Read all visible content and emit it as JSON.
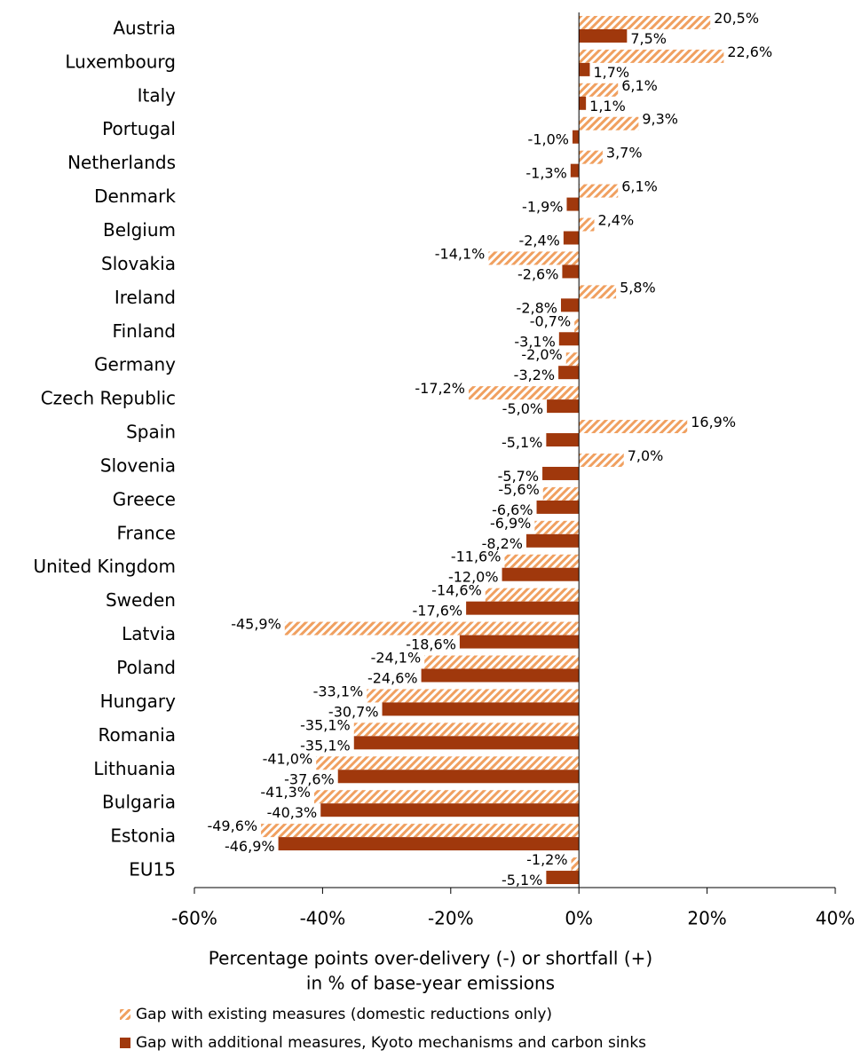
{
  "chart_data": {
    "type": "bar",
    "orientation": "horizontal",
    "categories": [
      "Austria",
      "Luxembourg",
      "Italy",
      "Portugal",
      "Netherlands",
      "Denmark",
      "Belgium",
      "Slovakia",
      "Ireland",
      "Finland",
      "Germany",
      "Czech Republic",
      "Spain",
      "Slovenia",
      "Greece",
      "France",
      "United Kingdom",
      "Sweden",
      "Latvia",
      "Poland",
      "Hungary",
      "Romania",
      "Lithuania",
      "Bulgaria",
      "Estonia",
      "EU15"
    ],
    "series": [
      {
        "name": "Gap with existing measures (domestic reductions only)",
        "color": "#f0a060",
        "pattern": "hatch",
        "values": [
          20.5,
          22.6,
          6.1,
          9.3,
          3.7,
          6.1,
          2.4,
          -14.1,
          5.8,
          -0.7,
          -2.0,
          -17.2,
          16.9,
          7.0,
          -5.6,
          -6.9,
          -11.6,
          -14.6,
          -45.9,
          -24.1,
          -33.1,
          -35.1,
          -41.0,
          -41.3,
          -49.6,
          -1.2
        ],
        "value_labels": [
          "20,5%",
          "22,6%",
          "6,1%",
          "9,3%",
          "3,7%",
          "6,1%",
          "2,4%",
          "-14,1%",
          "5,8%",
          "-0,7%",
          "-2,0%",
          "-17,2%",
          "16,9%",
          "7,0%",
          "-5,6%",
          "-6,9%",
          "-11,6%",
          "-14,6%",
          "-45,9%",
          "-24,1%",
          "-33,1%",
          "-35,1%",
          "-41,0%",
          "-41,3%",
          "-49,6%",
          "-1,2%"
        ]
      },
      {
        "name": "Gap with additional measures, Kyoto mechanisms and carbon sinks",
        "color": "#a0380c",
        "pattern": "solid",
        "values": [
          7.5,
          1.7,
          1.1,
          -1.0,
          -1.3,
          -1.9,
          -2.4,
          -2.6,
          -2.8,
          -3.1,
          -3.2,
          -5.0,
          -5.1,
          -5.7,
          -6.6,
          -8.2,
          -12.0,
          -17.6,
          -18.6,
          -24.6,
          -30.7,
          -35.1,
          -37.6,
          -40.3,
          -46.9,
          -5.1
        ],
        "value_labels": [
          "7,5%",
          "1,7%",
          "1,1%",
          "-1,0%",
          "-1,3%",
          "-1,9%",
          "-2,4%",
          "-2,6%",
          "-2,8%",
          "-3,1%",
          "-3,2%",
          "-5,0%",
          "-5,1%",
          "-5,7%",
          "-6,6%",
          "-8,2%",
          "-12,0%",
          "-17,6%",
          "-18,6%",
          "-24,6%",
          "-30,7%",
          "-35,1%",
          "-37,6%",
          "-40,3%",
          "-46,9%",
          "-5,1%"
        ]
      }
    ],
    "xlim": [
      -60,
      40
    ],
    "xticks": [
      {
        "value": -60,
        "label": "-60%"
      },
      {
        "value": -40,
        "label": "-40%"
      },
      {
        "value": -20,
        "label": "-20%"
      },
      {
        "value": 0,
        "label": "0%"
      },
      {
        "value": 20,
        "label": "20%"
      },
      {
        "value": 40,
        "label": "40%"
      }
    ],
    "x_label": [
      "Percentage points over-delivery (-) or shortfall (+)",
      "in % of base-year emissions"
    ]
  }
}
